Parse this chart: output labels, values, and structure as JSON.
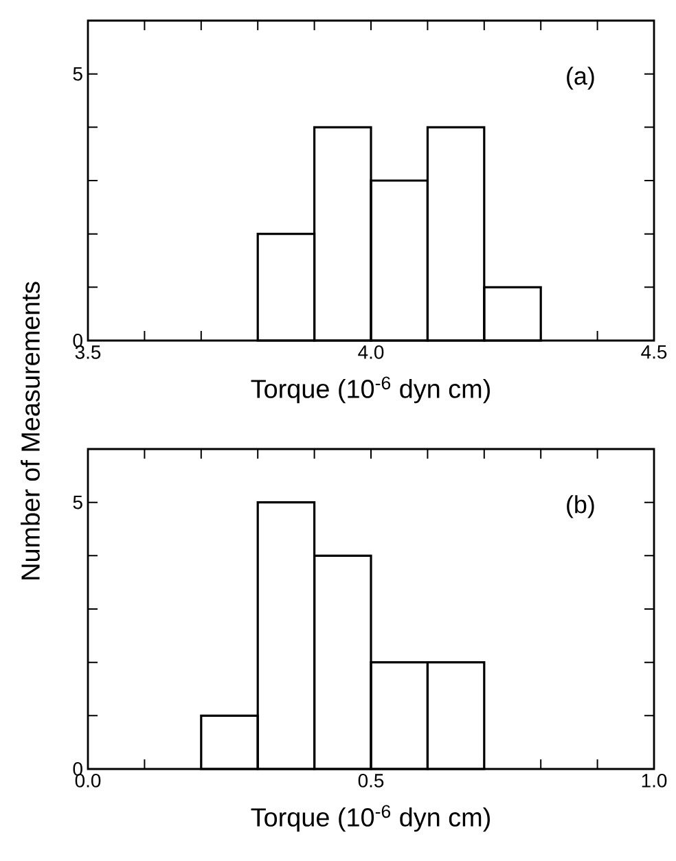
{
  "chart_data": [
    {
      "type": "histogram",
      "bins": [
        3.8,
        3.9,
        4.0,
        4.1,
        4.2,
        4.3
      ],
      "values": [
        2,
        4,
        3,
        4,
        1
      ],
      "color": "#000000",
      "xlabel": "Torque (10$^{-6}$ dyn cm)",
      "ylabel": "Number of Measurements",
      "annotations": [
        "(a)"
      ],
      "xlim": [
        3.5,
        4.5
      ],
      "ylim": [
        0,
        6
      ],
      "xticks": [
        {
          "value": 3.5,
          "label": "3.5"
        },
        {
          "value": 3.6,
          "label": null
        },
        {
          "value": 3.7,
          "label": null
        },
        {
          "value": 3.8,
          "label": null
        },
        {
          "value": 3.9,
          "label": null
        },
        {
          "value": 4.0,
          "label": "4.0"
        },
        {
          "value": 4.1,
          "label": null
        },
        {
          "value": 4.2,
          "label": null
        },
        {
          "value": 4.3,
          "label": null
        },
        {
          "value": 4.4,
          "label": null
        },
        {
          "value": 4.5,
          "label": "4.5"
        }
      ],
      "yticks": [
        0,
        {
          "value": 1,
          "label": null
        },
        {
          "value": 2,
          "label": null
        },
        {
          "value": 3,
          "label": null
        },
        {
          "value": 4,
          "label": null
        },
        5
      ]
    },
    {
      "type": "histogram",
      "bins": [
        0.2,
        0.3,
        0.4,
        0.5,
        0.6,
        0.7
      ],
      "values": [
        1,
        5,
        4,
        2,
        2
      ],
      "color": "#000000",
      "xlabel": "Torque (10$^{-6}$ dyn cm)",
      "annotations": [
        "(b)"
      ],
      "xlim": [
        0.0,
        1.0
      ],
      "ylim": [
        0,
        6
      ],
      "xticks": [
        {
          "value": 0.0,
          "label": "0.0"
        },
        {
          "value": 0.1,
          "label": null
        },
        {
          "value": 0.2,
          "label": null
        },
        {
          "value": 0.3,
          "label": null
        },
        {
          "value": 0.4,
          "label": null
        },
        {
          "value": 0.5,
          "label": "0.5"
        },
        {
          "value": 0.6,
          "label": null
        },
        {
          "value": 0.7,
          "label": null
        },
        {
          "value": 0.8,
          "label": null
        },
        {
          "value": 0.9,
          "label": null
        },
        {
          "value": 1.0,
          "label": "1.0"
        }
      ],
      "yticks": [
        0,
        {
          "value": 1,
          "label": null
        },
        {
          "value": 2,
          "label": null
        },
        {
          "value": 3,
          "label": null
        },
        {
          "value": 4,
          "label": null
        },
        5
      ]
    }
  ]
}
